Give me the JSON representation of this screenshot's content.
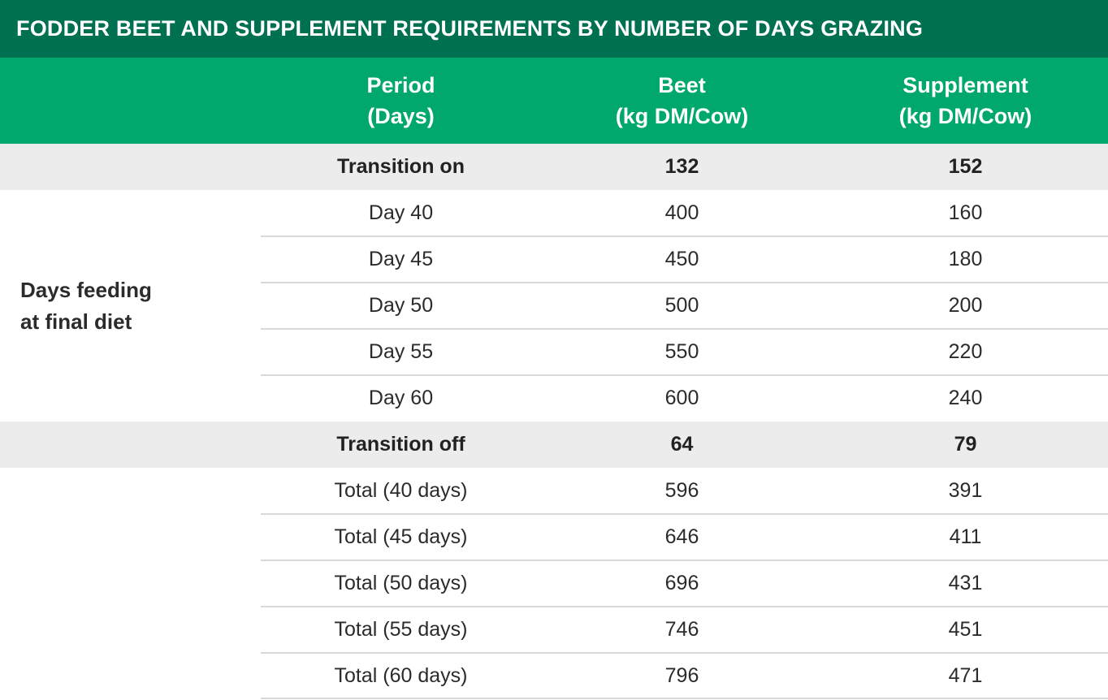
{
  "title": "FODDER BEET AND SUPPLEMENT REQUIREMENTS BY NUMBER OF DAYS GRAZING",
  "headers": {
    "period": [
      "Period",
      "(Days)"
    ],
    "beet": [
      "Beet",
      "(kg DM/Cow)"
    ],
    "supplement": [
      "Supplement",
      "(kg DM/Cow)"
    ]
  },
  "group_label": [
    "Days feeding",
    "at final diet"
  ],
  "rows": [
    {
      "period": "Transition on",
      "beet": "132",
      "supplement": "152"
    },
    {
      "period": "Day 40",
      "beet": "400",
      "supplement": "160"
    },
    {
      "period": "Day 45",
      "beet": "450",
      "supplement": "180"
    },
    {
      "period": "Day 50",
      "beet": "500",
      "supplement": "200"
    },
    {
      "period": "Day 55",
      "beet": "550",
      "supplement": "220"
    },
    {
      "period": "Day 60",
      "beet": "600",
      "supplement": "240"
    },
    {
      "period": "Transition off",
      "beet": "64",
      "supplement": "79"
    },
    {
      "period": "Total (40 days)",
      "beet": "596",
      "supplement": "391"
    },
    {
      "period": "Total (45 days)",
      "beet": "646",
      "supplement": "411"
    },
    {
      "period": "Total (50 days)",
      "beet": "696",
      "supplement": "431"
    },
    {
      "period": "Total (55 days)",
      "beet": "746",
      "supplement": "451"
    },
    {
      "period": "Total (60 days)",
      "beet": "796",
      "supplement": "471"
    }
  ],
  "colors": {
    "title_bg": "#007150",
    "header_bg": "#00a86b",
    "band_bg": "#ececec",
    "rule": "#d9d9d9"
  }
}
